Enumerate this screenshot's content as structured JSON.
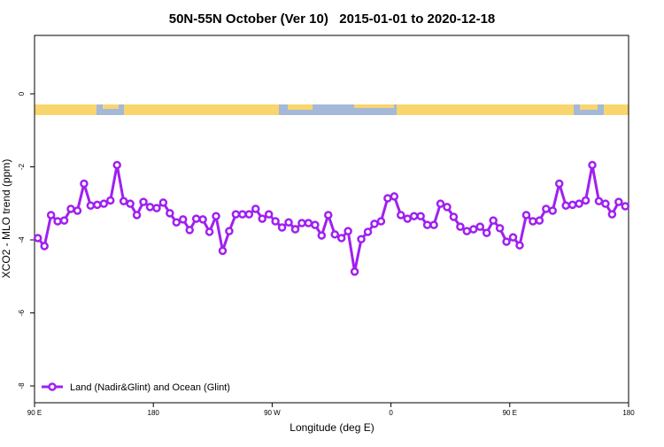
{
  "chart_data": {
    "type": "line",
    "title": "50N-55N October (Ver 10)   2015-01-01 to 2020-12-18",
    "x_label": "Longitude (deg E)",
    "y_label": "XCO2 - MLO trend (ppm)",
    "xlim": [
      90,
      540
    ],
    "ylim": [
      -8.46,
      1.6
    ],
    "xticks": [
      {
        "value": 90,
        "label": "90 E"
      },
      180,
      {
        "value": 270,
        "label": "90 W"
      },
      {
        "value": 360,
        "label": "0"
      },
      {
        "value": 450,
        "label": "90 E"
      },
      {
        "value": 540,
        "label": "180"
      }
    ],
    "yticks": [
      0,
      -2,
      -4,
      -6,
      -8
    ],
    "legend": "bottom-left",
    "x": [
      92.5,
      97.5,
      102.5,
      107.5,
      112.5,
      117.5,
      122.5,
      127.5,
      132.5,
      137.5,
      142.5,
      147.5,
      152.5,
      157.5,
      162.5,
      167.5,
      172.5,
      177.5,
      182.5,
      187.5,
      192.5,
      197.5,
      202.5,
      207.5,
      212.5,
      217.5,
      222.5,
      227.5,
      232.5,
      237.5,
      242.5,
      247.5,
      252.5,
      257.5,
      262.5,
      267.5,
      272.5,
      277.5,
      282.5,
      287.5,
      292.5,
      297.5,
      302.5,
      307.5,
      312.5,
      317.5,
      322.5,
      327.5,
      332.5,
      337.5,
      342.5,
      347.5,
      352.5,
      357.5,
      362.5,
      367.5,
      372.5,
      377.5,
      382.5,
      387.5,
      392.5,
      397.5,
      402.5,
      407.5,
      412.5,
      417.5,
      422.5,
      427.5,
      432.5,
      437.5,
      442.5,
      447.5,
      452.5,
      457.5,
      462.5,
      467.5,
      472.5,
      477.5,
      482.5,
      487.5,
      492.5,
      497.5,
      502.5,
      507.5,
      512.5,
      517.5,
      522.5,
      527.5,
      532.5,
      537.5
    ],
    "series": [
      {
        "name": "Land (Nadir&Glint) and Ocean (Glint)",
        "color": "#a020f0",
        "values": [
          -3.95,
          -4.17,
          -3.32,
          -3.49,
          -3.47,
          -3.15,
          -3.2,
          -2.46,
          -3.06,
          -3.04,
          -3.01,
          -2.92,
          -1.95,
          -2.94,
          -3.01,
          -3.32,
          -2.96,
          -3.1,
          -3.13,
          -2.98,
          -3.27,
          -3.52,
          -3.44,
          -3.73,
          -3.42,
          -3.44,
          -3.78,
          -3.35,
          -4.3,
          -3.76,
          -3.3,
          -3.3,
          -3.3,
          -3.15,
          -3.42,
          -3.3,
          -3.49,
          -3.66,
          -3.52,
          -3.71,
          -3.54,
          -3.54,
          -3.59,
          -3.88,
          -3.32,
          -3.85,
          -3.95,
          -3.76,
          -4.87,
          -3.98,
          -3.78,
          -3.56,
          -3.49,
          -2.86,
          -2.81,
          -3.32,
          -3.42,
          -3.35,
          -3.35,
          -3.59,
          -3.59,
          -3.01,
          -3.1,
          -3.37,
          -3.64,
          -3.76,
          -3.71,
          -3.64,
          -3.81,
          -3.47,
          -3.68,
          -4.05,
          -3.93,
          -4.15,
          -3.32,
          -3.49,
          -3.47,
          -3.15,
          -3.2,
          -2.46,
          -3.06,
          -3.04,
          -3.01,
          -2.92,
          -1.95,
          -2.94,
          -3.01,
          -3.3,
          -2.96,
          -3.08
        ]
      }
    ]
  }
}
